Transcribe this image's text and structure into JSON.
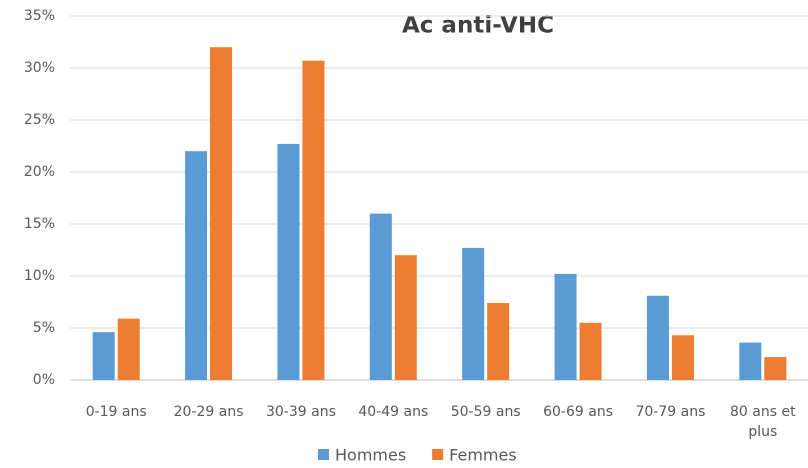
{
  "chart_data": {
    "type": "bar",
    "title": "Ac anti-VHC",
    "categories": [
      "0-19 ans",
      "20-29 ans",
      "30-39 ans",
      "40-49 ans",
      "50-59 ans",
      "60-69 ans",
      "70-79 ans",
      "80 ans et plus"
    ],
    "series": [
      {
        "name": "Hommes",
        "color": "#5b9bd5",
        "values": [
          4.6,
          22.0,
          22.7,
          16.0,
          12.7,
          10.2,
          8.1,
          3.6
        ]
      },
      {
        "name": "Femmes",
        "color": "#ed7d31",
        "values": [
          5.9,
          32.0,
          30.7,
          12.0,
          7.4,
          5.5,
          4.3,
          2.2
        ]
      }
    ],
    "ylim": [
      0,
      35
    ],
    "yticks": [
      {
        "value": 0,
        "label": "0%"
      },
      {
        "value": 5,
        "label": "5%"
      },
      {
        "value": 10,
        "label": "10%"
      },
      {
        "value": 15,
        "label": "15%"
      },
      {
        "value": 20,
        "label": "20%"
      },
      {
        "value": 25,
        "label": "25%"
      },
      {
        "value": 30,
        "label": "30%"
      },
      {
        "value": 35,
        "label": "35%"
      }
    ],
    "grid": true,
    "legend": "bottom"
  }
}
